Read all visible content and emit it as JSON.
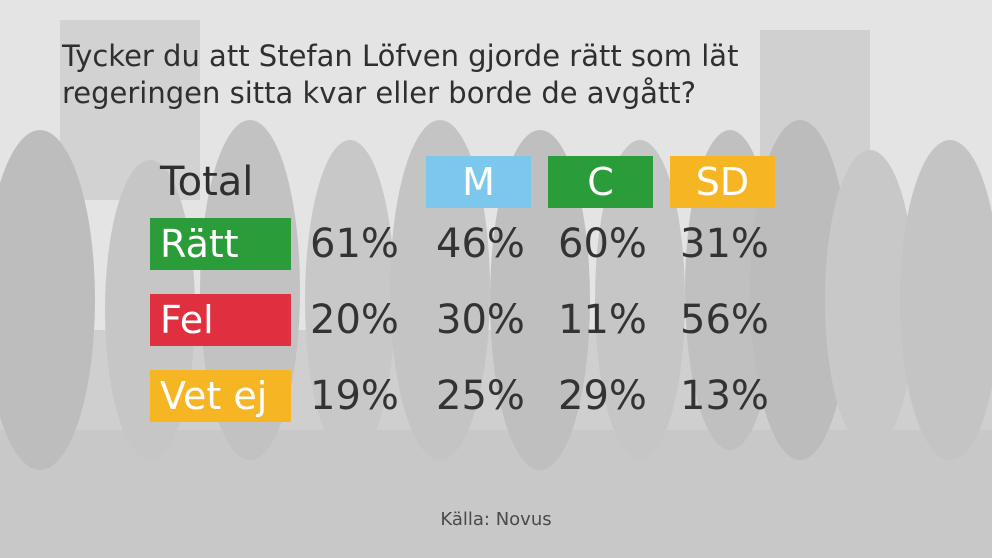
{
  "question": {
    "line1": "Tycker du att Stefan Löfven gjorde rätt som lät",
    "line2": "regeringen sitta kvar eller borde de avgått?"
  },
  "source": "Källa: Novus",
  "colors": {
    "m": "#7cc8ec",
    "c": "#2a9d3a",
    "sd": "#f6b523",
    "ratt": "#2a9d3a",
    "fel": "#e03040",
    "vet_ej": "#f6b523"
  },
  "chart_data": {
    "type": "table",
    "columns": [
      "Total",
      "M",
      "C",
      "SD"
    ],
    "rows": [
      {
        "label": "Rätt",
        "values": [
          "61%",
          "46%",
          "60%",
          "31%"
        ]
      },
      {
        "label": "Fel",
        "values": [
          "20%",
          "30%",
          "11%",
          "56%"
        ]
      },
      {
        "label": "Vet ej",
        "values": [
          "19%",
          "25%",
          "29%",
          "13%"
        ]
      }
    ]
  }
}
